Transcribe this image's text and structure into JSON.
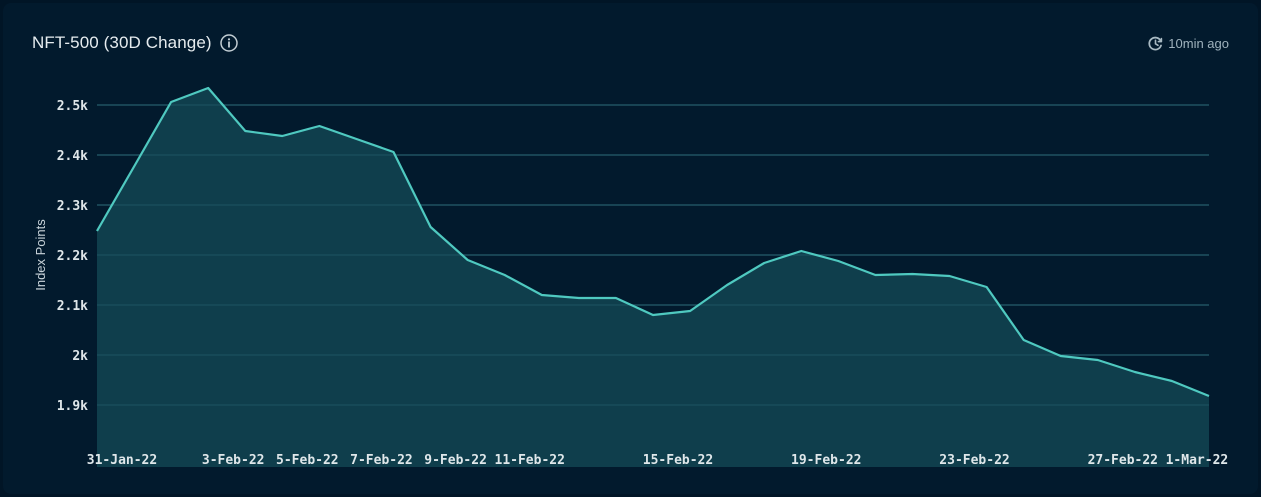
{
  "header": {
    "title": "NFT-500 (30D Change)",
    "info_icon": "info-circle-icon",
    "updated_icon": "clock-refresh-icon",
    "updated_text": "10min ago"
  },
  "colors": {
    "background": "#021a2d",
    "line": "#4fc9c0",
    "area_fill": "#0f3e4c",
    "gridline": "#1d4454"
  },
  "chart_data": {
    "type": "area",
    "title": "NFT-500 (30D Change)",
    "xlabel": "",
    "ylabel": "Index Points",
    "ylim": [
      1780,
      2540
    ],
    "y_ticks": [
      1900,
      2000,
      2100,
      2200,
      2300,
      2400,
      2500
    ],
    "y_tick_labels": [
      "1.9k",
      "2k",
      "2.1k",
      "2.2k",
      "2.3k",
      "2.4k",
      "2.5k"
    ],
    "grid": true,
    "legend": null,
    "x": [
      "31-Jan-22",
      "1-Feb-22",
      "2-Feb-22",
      "3-Feb-22",
      "4-Feb-22",
      "5-Feb-22",
      "6-Feb-22",
      "7-Feb-22",
      "8-Feb-22",
      "9-Feb-22",
      "10-Feb-22",
      "11-Feb-22",
      "12-Feb-22",
      "13-Feb-22",
      "14-Feb-22",
      "15-Feb-22",
      "16-Feb-22",
      "17-Feb-22",
      "18-Feb-22",
      "19-Feb-22",
      "20-Feb-22",
      "21-Feb-22",
      "22-Feb-22",
      "23-Feb-22",
      "24-Feb-22",
      "25-Feb-22",
      "26-Feb-22",
      "27-Feb-22",
      "28-Feb-22",
      "1-Mar-22",
      "2-Mar-22"
    ],
    "x_tick_labels": [
      {
        "index": 0,
        "label": "31-Jan-22"
      },
      {
        "index": 3,
        "label": "3-Feb-22"
      },
      {
        "index": 5,
        "label": "5-Feb-22"
      },
      {
        "index": 7,
        "label": "7-Feb-22"
      },
      {
        "index": 9,
        "label": "9-Feb-22"
      },
      {
        "index": 11,
        "label": "11-Feb-22"
      },
      {
        "index": 15,
        "label": "15-Feb-22"
      },
      {
        "index": 19,
        "label": "19-Feb-22"
      },
      {
        "index": 23,
        "label": "23-Feb-22"
      },
      {
        "index": 27,
        "label": "27-Feb-22"
      },
      {
        "index": 29,
        "label": "1-Mar-22"
      }
    ],
    "series": [
      {
        "name": "NFT-500",
        "values": [
          2248,
          2377,
          2506,
          2534,
          2448,
          2438,
          2458,
          2432,
          2406,
          2256,
          2190,
          2160,
          2120,
          2114,
          2114,
          2080,
          2088,
          2140,
          2184,
          2208,
          2188,
          2160,
          2162,
          2158,
          2136,
          2030,
          1998,
          1990,
          1966,
          1948,
          1918
        ]
      }
    ]
  }
}
